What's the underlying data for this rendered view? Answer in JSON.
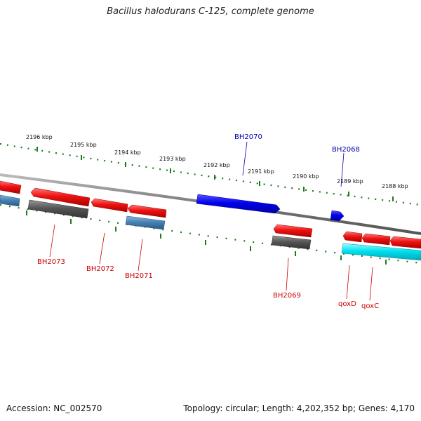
{
  "title": "Bacillus halodurans C-125, complete genome",
  "footer": {
    "accession": "Accession: NC_002570",
    "summary": "Topology: circular; Length: 4,202,352 bp; Genes: 4,170"
  },
  "colors": {
    "backbone": "#8a8a8a",
    "ticks": "#1f7a1f",
    "cds_forward": "#ee1111",
    "cds_reverse_blue": "#0000ee",
    "gray_feature": "#555555",
    "steel_feature": "#4682b4",
    "cyan_feature": "#00e0f0",
    "label_red": "#cc0000",
    "label_blue": "#0000aa"
  },
  "ruler": {
    "unit": "kbp",
    "ticks": [
      {
        "pos": 2196,
        "label": "2196 kbp"
      },
      {
        "pos": 2195,
        "label": "2195 kbp"
      },
      {
        "pos": 2194,
        "label": "2194 kbp"
      },
      {
        "pos": 2193,
        "label": "2193 kbp"
      },
      {
        "pos": 2192,
        "label": "2192 kbp"
      },
      {
        "pos": 2191,
        "label": "2191 kbp"
      },
      {
        "pos": 2190,
        "label": "2190 kbp"
      },
      {
        "pos": 2189,
        "label": "2189 kbp"
      },
      {
        "pos": 2188,
        "label": "2188 kbp"
      }
    ]
  },
  "labels": [
    {
      "id": "BH2073",
      "text": "BH2073"
    },
    {
      "id": "BH2072",
      "text": "BH2072"
    },
    {
      "id": "BH2071",
      "text": "BH2071"
    },
    {
      "id": "BH2070",
      "text": "BH2070"
    },
    {
      "id": "BH2069",
      "text": "BH2069"
    },
    {
      "id": "BH2068",
      "text": "BH2068"
    },
    {
      "id": "qoxD",
      "text": "qoxD"
    },
    {
      "id": "qoxC",
      "text": "qoxC"
    }
  ]
}
